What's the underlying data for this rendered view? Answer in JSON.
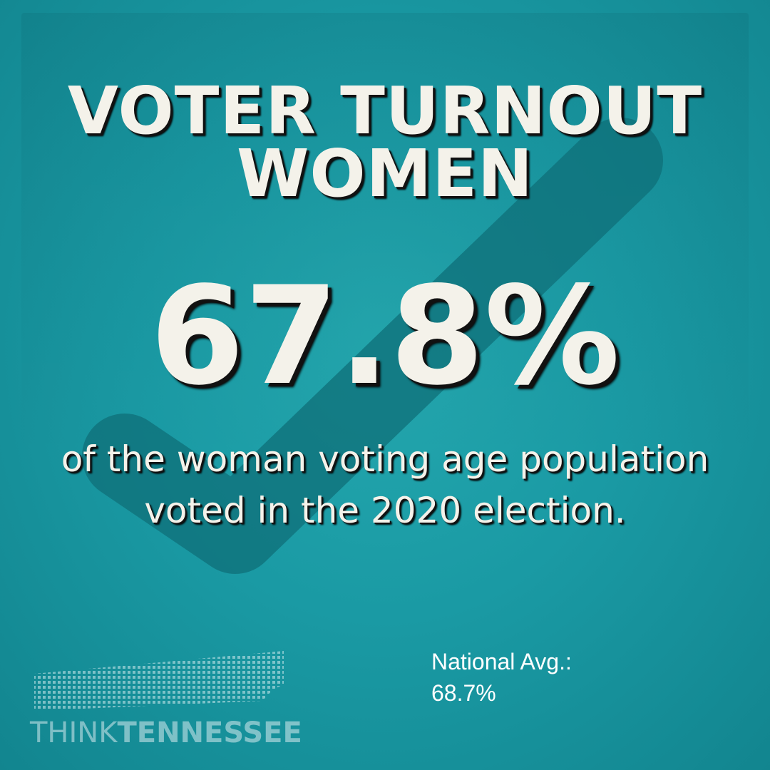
{
  "title": {
    "line1": "VOTER TURNOUT",
    "line2": "WOMEN"
  },
  "headline_value": "67.8%",
  "description": "of the woman voting age population voted in the 2020 election.",
  "national": {
    "label": "National Avg.:",
    "value": "68.7%"
  },
  "logo": {
    "word1": "THINK",
    "word2": "TENNESSEE"
  },
  "colors": {
    "background": "#1a9aa3",
    "text": "#f4f2ea",
    "checkmark": "#0f6f78"
  },
  "icons": {
    "background_mark": "checkmark-icon",
    "logo_mark": "tennessee-map-icon"
  }
}
